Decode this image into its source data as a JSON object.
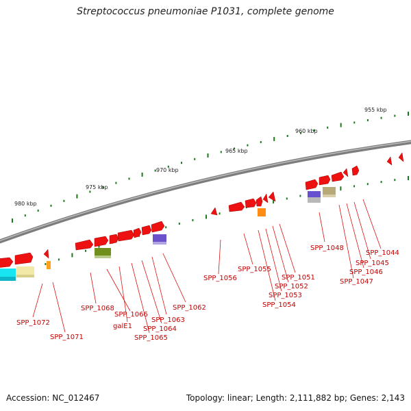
{
  "title": "Streptococcus pneumoniae P1031, complete genome",
  "footer": {
    "accession": "Accession: NC_012467",
    "stats": "Topology: linear; Length: 2,111,882 bp; Genes: 2,143"
  },
  "colors": {
    "backbone": "#888888",
    "gene": "#ee1111",
    "label": "#cc0000",
    "tick": "#1a7a1a"
  },
  "ruler_labels": [
    "955 kbp",
    "960 kbp",
    "965 kbp",
    "970 kbp",
    "975 kbp",
    "980 kbp"
  ],
  "gene_labels": [
    "SPP_1044",
    "SPP_1045",
    "SPP_1046",
    "SPP_1047",
    "SPP_1048",
    "SPP_1051",
    "SPP_1052",
    "SPP_1053",
    "SPP_1054",
    "SPP_1055",
    "SPP_1056",
    "SPP_1062",
    "SPP_1063",
    "SPP_1064",
    "SPP_1065",
    "galE1",
    "SPP_1066",
    "SPP_1068",
    "SPP_1071",
    "SPP_1072"
  ]
}
